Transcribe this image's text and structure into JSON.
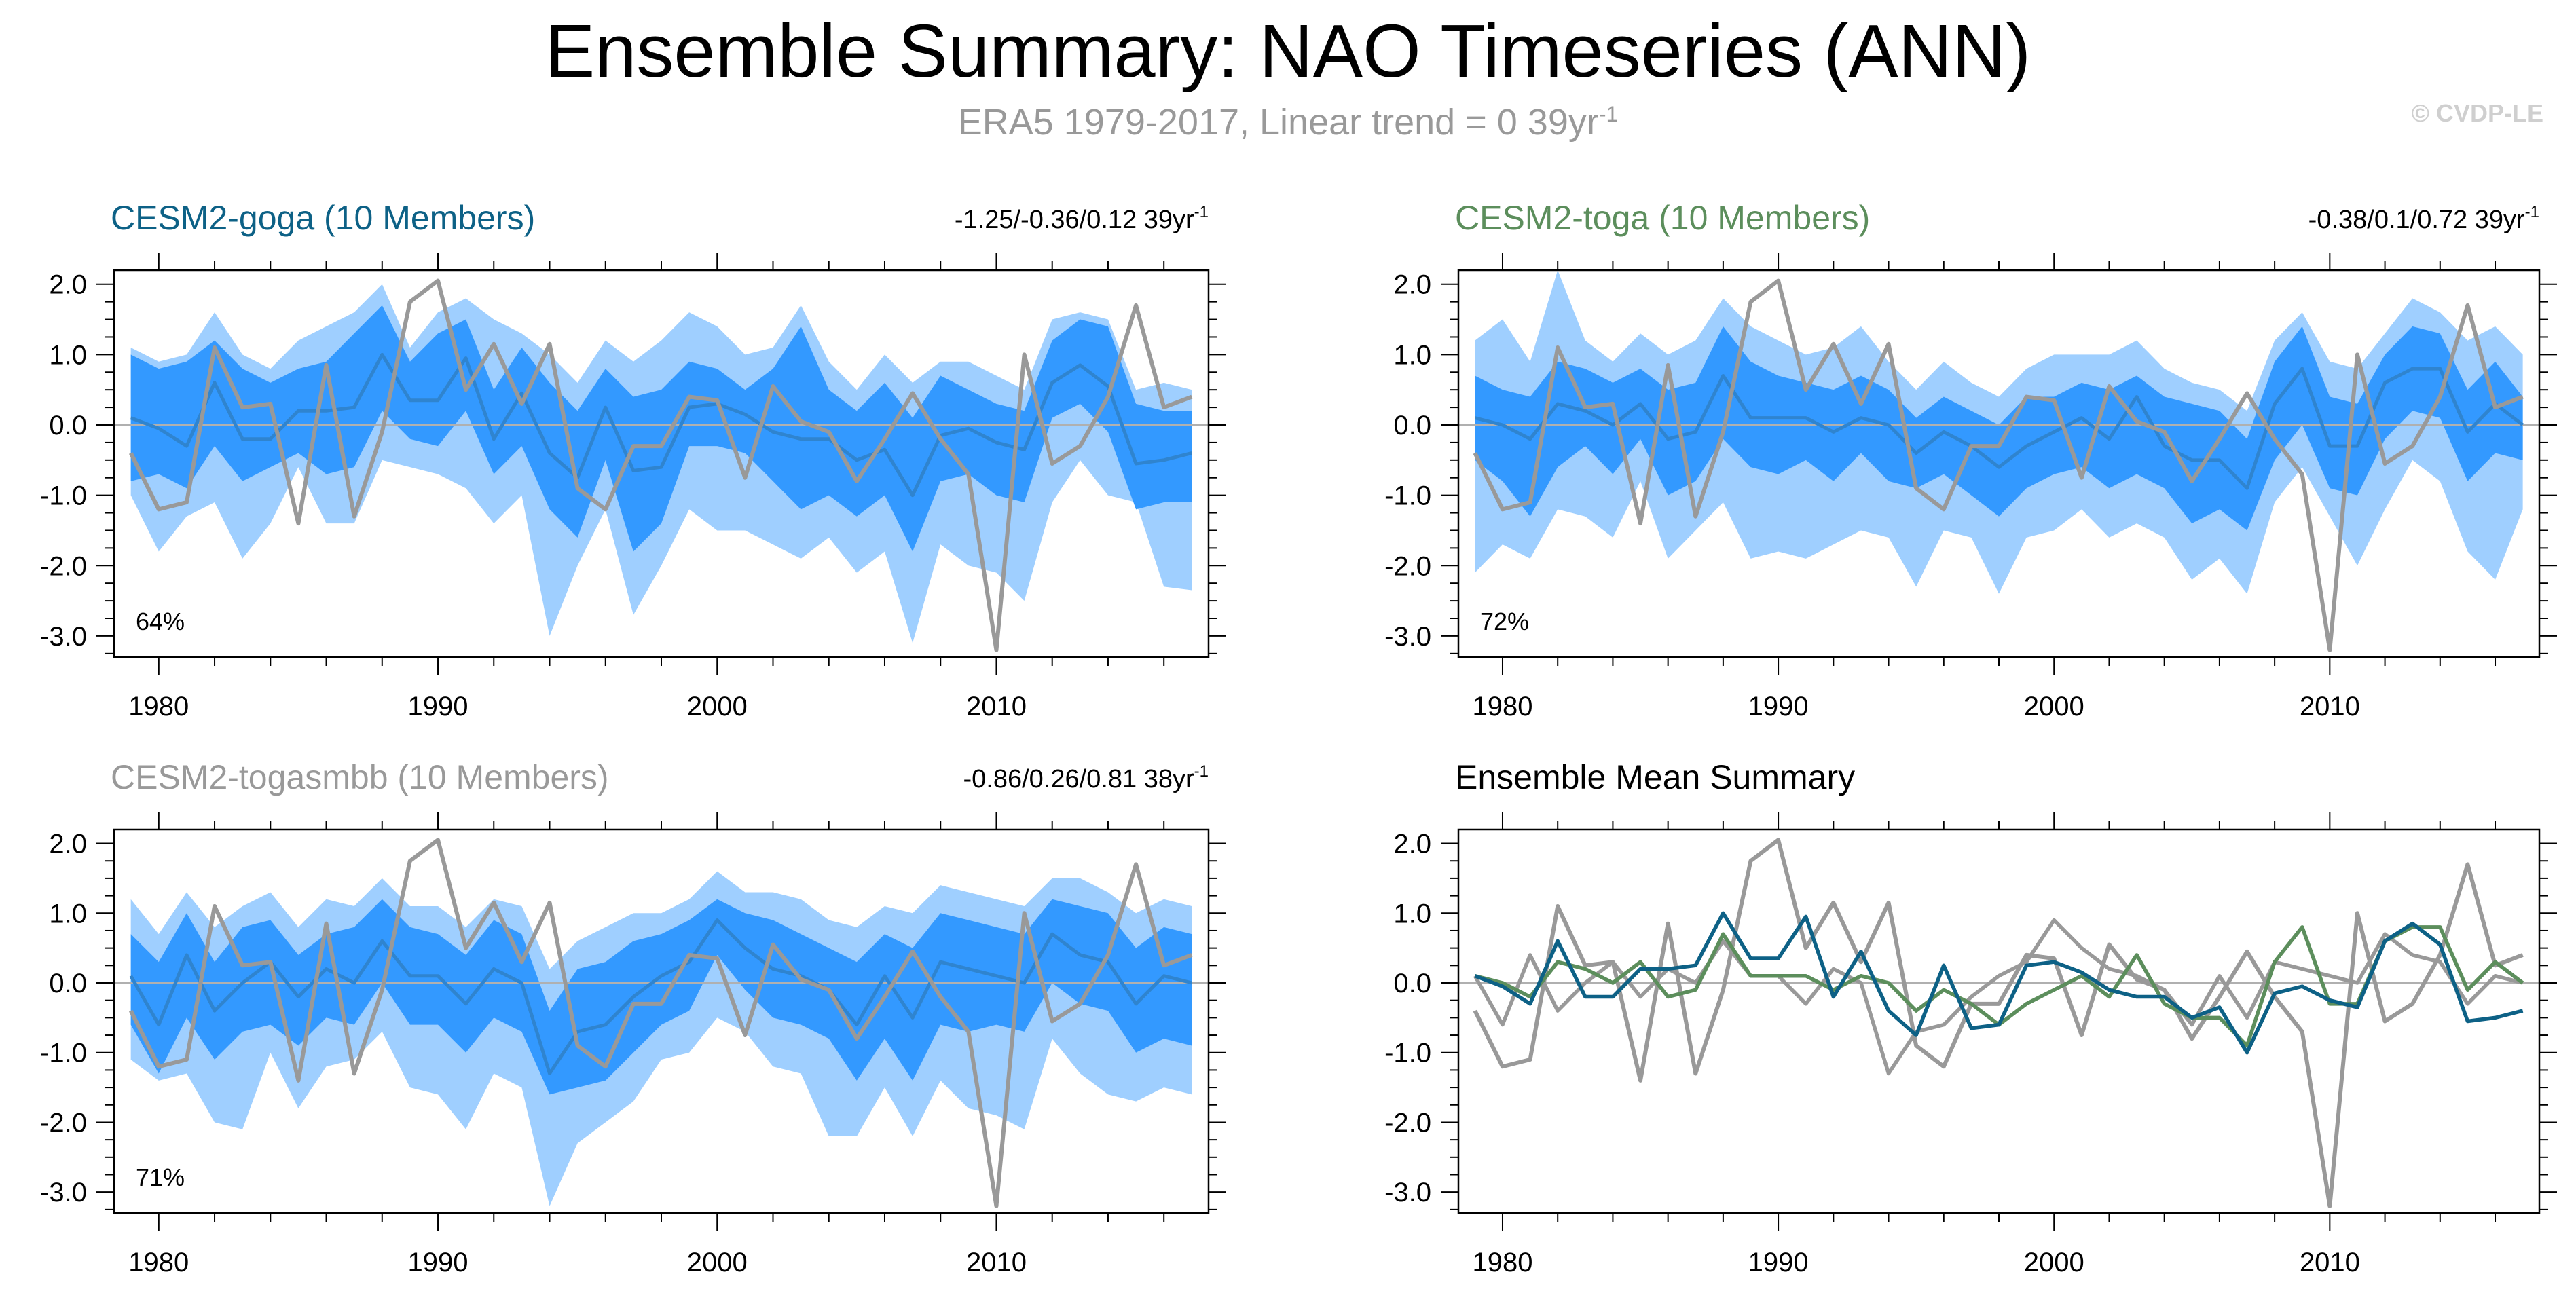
{
  "header": {
    "title": "Ensemble Summary: NAO Timeseries (ANN)",
    "subtitle": "ERA5 1979-2017, Linear trend = 0 39yr",
    "subtitle_sup": "-1",
    "copyright": "© CVDP-LE"
  },
  "colors": {
    "band_outer": "#9fcfff",
    "band_inner": "#3399ff",
    "goga": "#0d6186",
    "toga": "#5c8e5c",
    "togasmbb": "#999999",
    "obs": "#999999",
    "zero_line": "#b0b0b0"
  },
  "chart_data": {
    "years": [
      1979,
      1980,
      1981,
      1982,
      1983,
      1984,
      1985,
      1986,
      1987,
      1988,
      1989,
      1990,
      1991,
      1992,
      1993,
      1994,
      1995,
      1996,
      1997,
      1998,
      1999,
      2000,
      2001,
      2002,
      2003,
      2004,
      2005,
      2006,
      2007,
      2008,
      2009,
      2010,
      2011,
      2012,
      2013,
      2014,
      2015,
      2016,
      2017
    ],
    "xlim": [
      1978.4,
      2017.6
    ],
    "ylim": [
      -3.3,
      2.2
    ],
    "yticks": [
      2.0,
      1.0,
      0.0,
      -1.0,
      -2.0,
      -3.0
    ],
    "ytick_labels": [
      "2.0",
      "1.0",
      "0.0",
      "-1.0",
      "-2.0",
      "-3.0"
    ],
    "xticks": [
      1980,
      1990,
      2000,
      2010
    ],
    "xtick_labels": [
      "1980",
      "1990",
      "2000",
      "2010"
    ],
    "observed": {
      "name": "ERA5",
      "values": [
        -0.4,
        -1.2,
        -1.1,
        1.1,
        0.25,
        0.3,
        -1.4,
        0.85,
        -1.3,
        -0.1,
        1.75,
        2.05,
        0.5,
        1.15,
        0.3,
        1.15,
        -0.9,
        -1.2,
        -0.3,
        -0.3,
        0.4,
        0.35,
        -0.75,
        0.55,
        0.05,
        -0.1,
        -0.8,
        -0.2,
        0.45,
        -0.2,
        -0.7,
        -3.2,
        1.0,
        -0.55,
        -0.3,
        0.4,
        1.7,
        0.25,
        0.4
      ]
    },
    "panels": [
      {
        "id": "goga",
        "title": "CESM2-goga (10 Members)",
        "stats": "-1.25/-0.36/0.12 39yr",
        "stats_sup": "-1",
        "percent": "64%",
        "mean": [
          0.1,
          -0.05,
          -0.3,
          0.6,
          -0.2,
          -0.2,
          0.2,
          0.2,
          0.25,
          1.0,
          0.35,
          0.35,
          0.95,
          -0.2,
          0.45,
          -0.4,
          -0.75,
          0.25,
          -0.65,
          -0.6,
          0.25,
          0.3,
          0.15,
          -0.1,
          -0.2,
          -0.2,
          -0.5,
          -0.35,
          -1.0,
          -0.15,
          -0.05,
          -0.25,
          -0.35,
          0.6,
          0.85,
          0.55,
          -0.55,
          -0.5,
          -0.4
        ],
        "inner_hi": [
          1.0,
          0.8,
          0.9,
          1.2,
          0.8,
          0.6,
          0.8,
          0.9,
          1.3,
          1.7,
          0.9,
          1.3,
          1.5,
          0.5,
          1.1,
          0.6,
          0.2,
          0.8,
          0.4,
          0.5,
          0.9,
          0.8,
          0.5,
          0.8,
          1.4,
          0.5,
          0.2,
          0.6,
          0.1,
          0.7,
          0.5,
          0.3,
          0.2,
          1.2,
          1.5,
          1.4,
          0.3,
          0.2,
          0.2
        ],
        "inner_lo": [
          -0.8,
          -0.7,
          -0.9,
          -0.3,
          -0.8,
          -0.6,
          -0.4,
          -0.7,
          -0.6,
          0.2,
          -0.2,
          -0.3,
          0.2,
          -0.7,
          -0.3,
          -1.2,
          -1.6,
          -0.5,
          -1.8,
          -1.4,
          -0.3,
          -0.3,
          -0.4,
          -0.8,
          -1.2,
          -1.0,
          -1.3,
          -1.0,
          -1.8,
          -0.8,
          -0.7,
          -1.0,
          -1.1,
          0.1,
          0.3,
          -0.1,
          -1.2,
          -1.1,
          -1.1
        ],
        "outer_hi": [
          1.1,
          0.9,
          1.0,
          1.6,
          1.0,
          0.8,
          1.2,
          1.4,
          1.6,
          2.0,
          1.1,
          1.6,
          1.8,
          1.5,
          1.3,
          1.0,
          0.6,
          1.2,
          0.9,
          1.2,
          1.6,
          1.4,
          1.0,
          1.1,
          1.7,
          0.9,
          0.5,
          1.0,
          0.6,
          0.9,
          0.9,
          0.7,
          0.5,
          1.5,
          1.6,
          1.5,
          0.5,
          0.6,
          0.5
        ],
        "outer_lo": [
          -1.0,
          -1.8,
          -1.3,
          -1.1,
          -1.9,
          -1.4,
          -0.6,
          -1.4,
          -1.4,
          -0.5,
          -0.6,
          -0.7,
          -0.9,
          -1.4,
          -1.0,
          -3.0,
          -2.0,
          -1.2,
          -2.7,
          -2.0,
          -1.2,
          -1.5,
          -1.5,
          -1.7,
          -1.9,
          -1.6,
          -2.1,
          -1.8,
          -3.1,
          -1.7,
          -2.0,
          -2.1,
          -2.5,
          -1.1,
          -0.5,
          -1.0,
          -1.1,
          -2.3,
          -2.35
        ]
      },
      {
        "id": "toga",
        "title": "CESM2-toga (10 Members)",
        "stats": "-0.38/0.1/0.72 39yr",
        "stats_sup": "-1",
        "percent": "72%",
        "mean": [
          0.1,
          0.0,
          -0.2,
          0.3,
          0.2,
          0.0,
          0.3,
          -0.2,
          -0.1,
          0.7,
          0.1,
          0.1,
          0.1,
          -0.1,
          0.1,
          0.0,
          -0.4,
          -0.1,
          -0.3,
          -0.6,
          -0.3,
          -0.1,
          0.1,
          -0.2,
          0.4,
          -0.3,
          -0.5,
          -0.5,
          -0.9,
          0.3,
          0.8,
          -0.3,
          -0.3,
          0.6,
          0.8,
          0.8,
          -0.1,
          0.3,
          0.0
        ],
        "inner_hi": [
          0.7,
          0.5,
          0.4,
          0.9,
          0.8,
          0.6,
          0.8,
          0.5,
          0.6,
          1.4,
          0.9,
          0.7,
          0.6,
          0.5,
          0.7,
          0.5,
          0.1,
          0.4,
          0.2,
          0.0,
          0.4,
          0.4,
          0.6,
          0.5,
          0.7,
          0.4,
          0.3,
          0.2,
          -0.2,
          0.9,
          1.4,
          0.4,
          0.3,
          1.0,
          1.4,
          1.3,
          0.5,
          0.9,
          0.4
        ],
        "inner_lo": [
          -0.5,
          -0.8,
          -1.3,
          -0.6,
          -0.3,
          -0.7,
          -0.2,
          -1.0,
          -0.8,
          -0.2,
          -0.6,
          -0.7,
          -0.5,
          -0.8,
          -0.4,
          -0.8,
          -0.9,
          -0.7,
          -1.0,
          -1.3,
          -0.9,
          -0.7,
          -0.6,
          -0.9,
          -0.7,
          -0.9,
          -1.4,
          -1.2,
          -1.5,
          -0.5,
          0.0,
          -0.9,
          -1.0,
          -0.2,
          0.2,
          0.1,
          -0.8,
          -0.4,
          -0.5
        ],
        "outer_hi": [
          1.2,
          1.5,
          0.9,
          2.2,
          1.2,
          0.9,
          1.3,
          1.0,
          1.2,
          1.8,
          1.4,
          1.2,
          1.0,
          1.1,
          1.4,
          0.9,
          0.5,
          0.9,
          0.6,
          0.4,
          0.8,
          1.0,
          1.0,
          1.0,
          1.2,
          0.8,
          0.6,
          0.5,
          0.2,
          1.2,
          1.6,
          0.9,
          0.8,
          1.3,
          1.8,
          1.6,
          1.2,
          1.4,
          1.0
        ],
        "outer_lo": [
          -2.1,
          -1.7,
          -1.9,
          -1.2,
          -1.3,
          -1.6,
          -0.8,
          -1.9,
          -1.5,
          -1.1,
          -1.9,
          -1.8,
          -1.9,
          -1.7,
          -1.5,
          -1.6,
          -2.3,
          -1.5,
          -1.6,
          -2.4,
          -1.6,
          -1.5,
          -1.2,
          -1.6,
          -1.4,
          -1.6,
          -2.2,
          -1.9,
          -2.4,
          -1.1,
          -0.6,
          -1.3,
          -2.0,
          -1.2,
          -0.5,
          -0.8,
          -1.8,
          -2.2,
          -1.2
        ]
      },
      {
        "id": "togasmbb",
        "title": "CESM2-togasmbb (10 Members)",
        "stats": "-0.86/0.26/0.81 38yr",
        "stats_sup": "-1",
        "percent": "71%",
        "mean": [
          0.1,
          -0.6,
          0.4,
          -0.4,
          0.0,
          0.3,
          -0.2,
          0.2,
          0.0,
          0.6,
          0.1,
          0.1,
          -0.3,
          0.2,
          0.0,
          -1.3,
          -0.7,
          -0.6,
          -0.2,
          0.1,
          0.3,
          0.9,
          0.5,
          0.2,
          0.1,
          -0.1,
          -0.6,
          0.1,
          -0.5,
          0.3,
          0.2,
          0.1,
          0.0,
          0.7,
          0.4,
          0.3,
          -0.3,
          0.1,
          0.0
        ],
        "inner_hi": [
          0.7,
          0.3,
          1.0,
          0.3,
          0.8,
          0.9,
          0.4,
          0.7,
          0.8,
          1.2,
          0.8,
          0.7,
          0.4,
          0.9,
          0.7,
          -0.4,
          0.2,
          0.3,
          0.6,
          0.7,
          0.9,
          1.2,
          1.0,
          0.9,
          0.7,
          0.5,
          0.3,
          0.7,
          0.5,
          1.0,
          0.9,
          0.8,
          0.7,
          1.2,
          1.1,
          1.0,
          0.5,
          0.8,
          0.7
        ],
        "inner_lo": [
          -0.6,
          -1.3,
          -0.5,
          -1.1,
          -0.7,
          -0.6,
          -0.9,
          -0.5,
          -0.6,
          0.0,
          -0.6,
          -0.6,
          -1.0,
          -0.5,
          -0.7,
          -1.6,
          -1.5,
          -1.4,
          -1.0,
          -0.6,
          -0.4,
          0.4,
          -0.1,
          -0.5,
          -0.6,
          -0.8,
          -1.4,
          -0.8,
          -1.4,
          -0.6,
          -0.7,
          -0.6,
          -0.7,
          0.0,
          -0.3,
          -0.4,
          -1.0,
          -0.8,
          -0.9
        ],
        "outer_hi": [
          1.2,
          0.7,
          1.3,
          0.8,
          1.1,
          1.3,
          0.8,
          1.2,
          1.1,
          1.5,
          1.1,
          1.1,
          0.8,
          1.2,
          1.1,
          0.2,
          0.6,
          0.8,
          1.0,
          1.0,
          1.2,
          1.6,
          1.3,
          1.3,
          1.2,
          0.9,
          0.8,
          1.1,
          1.0,
          1.4,
          1.3,
          1.2,
          1.1,
          1.5,
          1.5,
          1.3,
          1.0,
          1.2,
          1.1
        ],
        "outer_lo": [
          -1.1,
          -1.4,
          -1.3,
          -2.0,
          -2.1,
          -1.0,
          -1.8,
          -1.2,
          -1.1,
          -0.7,
          -1.5,
          -1.6,
          -2.1,
          -1.3,
          -1.5,
          -3.2,
          -2.3,
          -2.0,
          -1.7,
          -1.1,
          -1.0,
          -0.5,
          -0.7,
          -1.2,
          -1.3,
          -2.2,
          -2.2,
          -1.5,
          -2.2,
          -1.4,
          -1.8,
          -1.9,
          -2.1,
          -0.8,
          -1.3,
          -1.6,
          -1.7,
          -1.5,
          -1.6
        ]
      },
      {
        "id": "mean",
        "title": "Ensemble Mean Summary",
        "stats": "",
        "stats_sup": "",
        "percent": ""
      }
    ]
  }
}
